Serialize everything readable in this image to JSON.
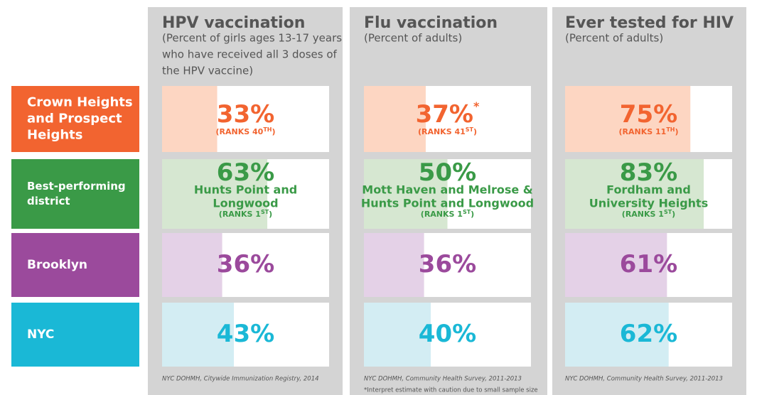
{
  "xlim": [
    0,
    100
  ],
  "rows": [
    {
      "label_lines": [
        "Crown Heights",
        "and Prospect",
        "Heights"
      ],
      "color": "#f26430",
      "bar_color": "#fdd6c2"
    },
    {
      "label_lines": [
        "Best-performing",
        "district"
      ],
      "color": "#3a9a47",
      "bar_color": "#d6e7d1"
    },
    {
      "label_lines": [
        "Brooklyn"
      ],
      "color": "#9b4a9c",
      "bar_color": "#e4d1e7"
    },
    {
      "label_lines": [
        "NYC"
      ],
      "color": "#1ab8d6",
      "bar_color": "#d3edf3"
    }
  ],
  "panels": [
    {
      "title": "HPV vaccination",
      "subtitle_lines": [
        "(Percent of girls ages 13-17 years",
        "who have received all 3 doses of",
        "the HPV vaccine)"
      ],
      "values": [
        33,
        63,
        36,
        43
      ],
      "value_labels": [
        "33%",
        "63%",
        "36%",
        "43%"
      ],
      "value_notes": [
        null,
        null,
        null,
        null
      ],
      "districts": [
        null,
        [
          "Hunts Point and",
          "Longwood"
        ],
        null,
        null
      ],
      "ranks": [
        [
          "(RANKS 40",
          "TH",
          ")"
        ],
        [
          "(RANKS 1",
          "ST",
          ")"
        ],
        null,
        null
      ],
      "source": "NYC DOHMH, Citywide Immunization Registry, 2014",
      "footnote": null
    },
    {
      "title": "Flu vaccination",
      "subtitle_lines": [
        "(Percent of adults)"
      ],
      "values": [
        37,
        50,
        36,
        40
      ],
      "value_labels": [
        "37%",
        "50%",
        "36%",
        "40%"
      ],
      "value_notes": [
        "*",
        null,
        null,
        null
      ],
      "districts": [
        null,
        [
          "Mott Haven and Melrose &",
          "Hunts Point and Longwood"
        ],
        null,
        null
      ],
      "ranks": [
        [
          "(RANKS 41",
          "ST",
          ")"
        ],
        [
          "(RANKS 1",
          "ST",
          ")"
        ],
        null,
        null
      ],
      "source": "NYC DOHMH, Community Health Survey, 2011-2013",
      "footnote": "*Interpret estimate with caution due to small sample size"
    },
    {
      "title": "Ever tested for HIV",
      "subtitle_lines": [
        "(Percent of adults)"
      ],
      "values": [
        75,
        83,
        61,
        62
      ],
      "value_labels": [
        "75%",
        "83%",
        "61%",
        "62%"
      ],
      "value_notes": [
        null,
        null,
        null,
        null
      ],
      "districts": [
        null,
        [
          "Fordham and",
          "University Heights"
        ],
        null,
        null
      ],
      "ranks": [
        [
          "(RANKS 11",
          "TH",
          ")"
        ],
        [
          "(RANKS 1",
          "ST",
          ")"
        ],
        null,
        null
      ],
      "source": "NYC DOHMH, Community Health Survey, 2011-2013",
      "footnote": null
    }
  ]
}
